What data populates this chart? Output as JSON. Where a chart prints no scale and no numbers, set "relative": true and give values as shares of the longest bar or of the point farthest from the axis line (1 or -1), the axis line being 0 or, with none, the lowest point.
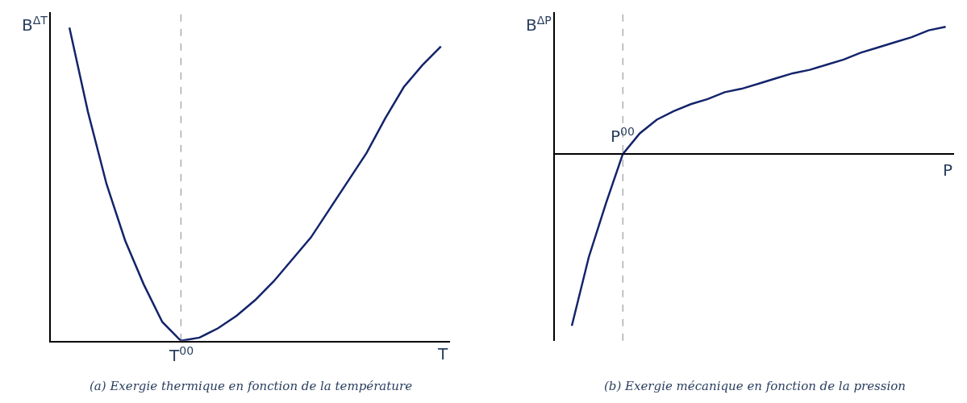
{
  "chart_data": [
    {
      "type": "line",
      "title": "(a) Exergie thermique en fonction de la température",
      "xlabel": "T",
      "ylabel": "B$^{ΔT}$",
      "relative": true,
      "categories": [
        null,
        null,
        null,
        null,
        null,
        null,
        null,
        null,
        null,
        null,
        null,
        null,
        null,
        null,
        null,
        null,
        null,
        null,
        null,
        null,
        null
      ],
      "series": [
        {
          "color": "#14246b",
          "values": [
            1.0,
            0.73,
            0.5,
            0.32,
            0.18,
            0.06,
            0.0,
            0.01,
            0.04,
            0.08,
            0.13,
            0.19,
            0.26,
            0.33,
            0.42,
            0.51,
            0.6,
            0.71,
            0.81,
            0.88,
            0.94
          ]
        }
      ],
      "annotations": [
        {
          "text": "T$^{00}$",
          "y": 0
        }
      ]
    },
    {
      "type": "line",
      "title": "(b) Exergie mécanique en fonction de la pression",
      "xlabel": "P",
      "ylabel": "B$^{ΔP}$",
      "relative": true,
      "categories": [
        null,
        null,
        null,
        null,
        null,
        null,
        null,
        null,
        null,
        null,
        null,
        null,
        null,
        null,
        null,
        null,
        null,
        null,
        null,
        null,
        null,
        null,
        null
      ],
      "series": [
        {
          "color": "#14246b",
          "values": [
            -1.0,
            -0.6,
            -0.29,
            0.0,
            0.12,
            0.2,
            0.25,
            0.29,
            0.32,
            0.36,
            0.38,
            0.41,
            0.44,
            0.47,
            0.49,
            0.52,
            0.55,
            0.59,
            0.62,
            0.65,
            0.68,
            0.72,
            0.74
          ]
        }
      ],
      "annotations": [
        {
          "text": "P$^{00}$",
          "y": 0
        }
      ]
    }
  ]
}
